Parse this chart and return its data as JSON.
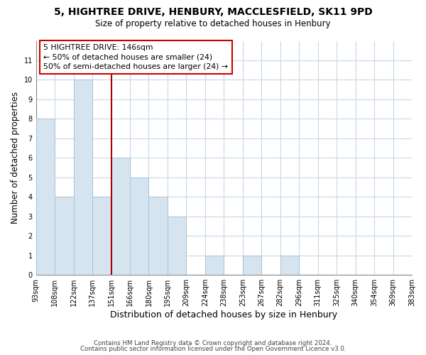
{
  "title": "5, HIGHTREE DRIVE, HENBURY, MACCLESFIELD, SK11 9PD",
  "subtitle": "Size of property relative to detached houses in Henbury",
  "xlabel": "Distribution of detached houses by size in Henbury",
  "ylabel": "Number of detached properties",
  "bar_labels": [
    "93sqm",
    "108sqm",
    "122sqm",
    "137sqm",
    "151sqm",
    "166sqm",
    "180sqm",
    "195sqm",
    "209sqm",
    "224sqm",
    "238sqm",
    "253sqm",
    "267sqm",
    "282sqm",
    "296sqm",
    "311sqm",
    "325sqm",
    "340sqm",
    "354sqm",
    "369sqm",
    "383sqm"
  ],
  "bar_heights": [
    8,
    4,
    10,
    4,
    6,
    5,
    4,
    3,
    0,
    1,
    0,
    1,
    0,
    1,
    0,
    0,
    0,
    0,
    0,
    0
  ],
  "bar_color": "#d6e4f0",
  "bar_edge_color": "#a8c4d8",
  "vline_color": "#aa0000",
  "annotation_text_line1": "5 HIGHTREE DRIVE: 146sqm",
  "annotation_text_line2": "← 50% of detached houses are smaller (24)",
  "annotation_text_line3": "50% of semi-detached houses are larger (24) →",
  "ylim": [
    0,
    12
  ],
  "yticks": [
    0,
    1,
    2,
    3,
    4,
    5,
    6,
    7,
    8,
    9,
    10,
    11,
    12
  ],
  "grid_color": "#c8d8e8",
  "background_color": "#ffffff",
  "fig_background": "#ffffff",
  "footer_line1": "Contains HM Land Registry data © Crown copyright and database right 2024.",
  "footer_line2": "Contains public sector information licensed under the Open Government Licence v3.0."
}
